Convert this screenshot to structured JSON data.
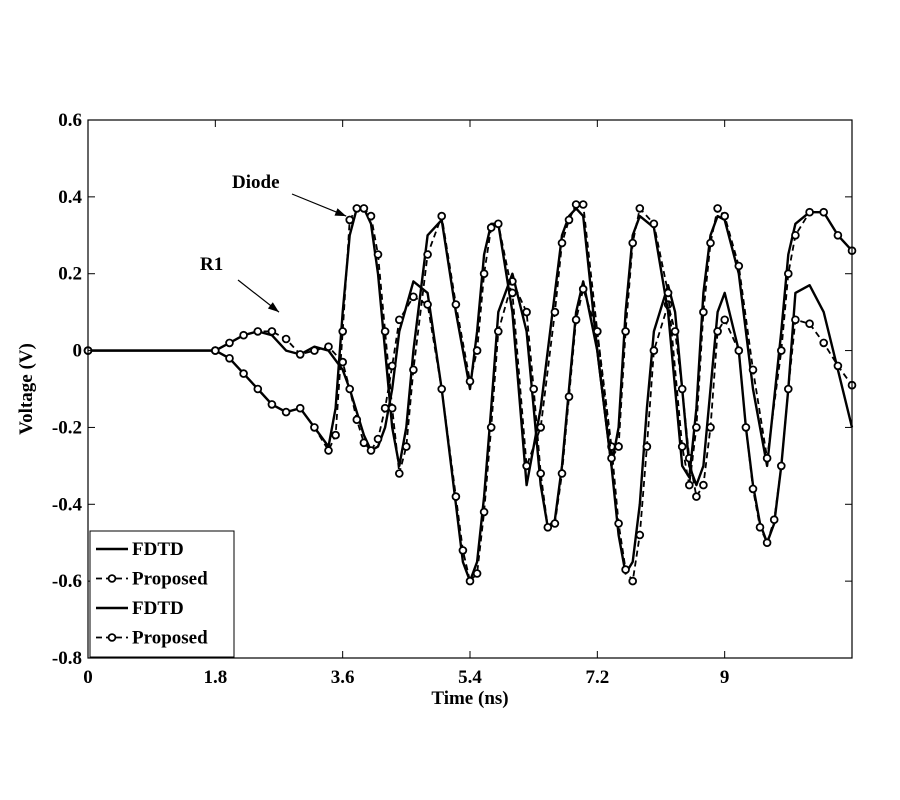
{
  "colors": {
    "line": "#000000",
    "background": "#ffffff"
  },
  "chart_data": {
    "type": "line",
    "title": "",
    "xlabel": "Time (ns)",
    "ylabel": "Voltage (V)",
    "xlim": [
      0,
      10.8
    ],
    "ylim": [
      -0.8,
      0.6
    ],
    "xticks": [
      0,
      1.8,
      3.6,
      5.4,
      7.2,
      9
    ],
    "xtick_labels": [
      "0",
      "1.8",
      "3.6",
      "5.4",
      "7.2",
      "9"
    ],
    "yticks": [
      -0.8,
      -0.6,
      -0.4,
      -0.2,
      0,
      0.2,
      0.4,
      0.6
    ],
    "ytick_labels": [
      "-0.8",
      "-0.6",
      "-0.4",
      "-0.2",
      "0",
      "0.2",
      "0.4",
      "0.6"
    ],
    "grid": false,
    "legend_position": "bottom-left",
    "annotations": [
      {
        "text": "Diode",
        "target": [
          3.65,
          0.35
        ]
      },
      {
        "text": "R1",
        "target": [
          2.7,
          0.1
        ]
      }
    ],
    "series": [
      {
        "name": "FDTD",
        "style": "solid",
        "x": [
          0.0,
          1.8,
          2.0,
          2.2,
          2.4,
          2.6,
          2.8,
          3.0,
          3.2,
          3.4,
          3.6,
          3.7,
          3.8,
          3.9,
          4.0,
          4.1,
          4.2,
          4.3,
          4.4,
          4.6,
          4.8,
          5.0,
          5.2,
          5.3,
          5.4,
          5.5,
          5.6,
          5.7,
          5.8,
          6.0,
          6.2,
          6.3,
          6.4,
          6.5,
          6.6,
          6.7,
          6.8,
          6.9,
          7.0,
          7.2,
          7.4,
          7.5,
          7.6,
          7.7,
          7.8,
          7.9,
          8.0,
          8.2,
          8.3,
          8.4,
          8.5,
          8.6,
          8.7,
          8.8,
          8.9,
          9.0,
          9.2,
          9.3,
          9.4,
          9.5,
          9.6,
          9.7,
          9.8,
          9.9,
          10.0,
          10.2,
          10.4,
          10.6,
          10.8
        ],
        "y": [
          0.0,
          0.0,
          0.02,
          0.04,
          0.05,
          0.04,
          0.0,
          -0.01,
          0.01,
          0.0,
          -0.05,
          -0.1,
          -0.16,
          -0.22,
          -0.26,
          -0.25,
          -0.2,
          -0.1,
          0.05,
          0.18,
          0.15,
          -0.1,
          -0.4,
          -0.55,
          -0.6,
          -0.55,
          -0.38,
          -0.15,
          0.1,
          0.2,
          0.05,
          -0.15,
          -0.35,
          -0.46,
          -0.44,
          -0.3,
          -0.1,
          0.1,
          0.18,
          0.0,
          -0.3,
          -0.48,
          -0.58,
          -0.55,
          -0.4,
          -0.15,
          0.05,
          0.17,
          0.1,
          -0.1,
          -0.3,
          -0.35,
          -0.3,
          -0.1,
          0.1,
          0.15,
          0.0,
          -0.2,
          -0.35,
          -0.45,
          -0.5,
          -0.45,
          -0.3,
          -0.1,
          0.15,
          0.17,
          0.1,
          -0.05,
          -0.2
        ]
      },
      {
        "name": "Proposed",
        "style": "dashed-circles",
        "x": [
          0.0,
          1.8,
          2.0,
          2.2,
          2.4,
          2.6,
          2.8,
          3.0,
          3.2,
          3.4,
          3.6,
          3.7,
          3.8,
          3.9,
          4.0,
          4.1,
          4.2,
          4.3,
          4.4,
          4.6,
          4.8,
          5.0,
          5.2,
          5.3,
          5.4,
          5.5,
          5.6,
          5.7,
          5.8,
          6.0,
          6.2,
          6.3,
          6.4,
          6.5,
          6.6,
          6.7,
          6.8,
          6.9,
          7.0,
          7.2,
          7.4,
          7.5,
          7.6,
          7.7,
          7.8,
          7.9,
          8.0,
          8.2,
          8.3,
          8.4,
          8.5,
          8.6,
          8.7,
          8.8,
          8.9,
          9.0,
          9.2,
          9.3,
          9.4,
          9.5,
          9.6,
          9.7,
          9.8,
          9.9,
          10.0,
          10.2,
          10.4,
          10.6,
          10.8
        ],
        "y": [
          0.0,
          0.0,
          0.02,
          0.04,
          0.05,
          0.05,
          0.03,
          -0.01,
          0.0,
          0.01,
          -0.03,
          -0.1,
          -0.18,
          -0.24,
          -0.26,
          -0.23,
          -0.15,
          -0.04,
          0.08,
          0.14,
          0.12,
          -0.1,
          -0.38,
          -0.52,
          -0.6,
          -0.58,
          -0.42,
          -0.2,
          0.05,
          0.18,
          0.1,
          -0.1,
          -0.32,
          -0.46,
          -0.45,
          -0.32,
          -0.12,
          0.08,
          0.16,
          0.05,
          -0.25,
          -0.45,
          -0.57,
          -0.6,
          -0.48,
          -0.25,
          0.0,
          0.12,
          0.05,
          -0.1,
          -0.28,
          -0.38,
          -0.35,
          -0.2,
          0.05,
          0.08,
          0.0,
          -0.2,
          -0.36,
          -0.46,
          -0.5,
          -0.44,
          -0.3,
          -0.1,
          0.08,
          0.07,
          0.02,
          -0.04,
          -0.09
        ]
      },
      {
        "name": "FDTD",
        "style": "solid",
        "x": [
          0.0,
          1.8,
          2.0,
          2.2,
          2.4,
          2.6,
          2.8,
          3.0,
          3.2,
          3.4,
          3.5,
          3.6,
          3.7,
          3.8,
          3.9,
          4.0,
          4.1,
          4.2,
          4.3,
          4.4,
          4.5,
          4.6,
          4.8,
          5.0,
          5.2,
          5.4,
          5.5,
          5.6,
          5.7,
          5.8,
          6.0,
          6.2,
          6.4,
          6.6,
          6.7,
          6.8,
          6.9,
          7.0,
          7.2,
          7.4,
          7.5,
          7.6,
          7.7,
          7.8,
          8.0,
          8.2,
          8.4,
          8.5,
          8.6,
          8.7,
          8.8,
          8.9,
          9.0,
          9.2,
          9.4,
          9.6,
          9.8,
          9.9,
          10.0,
          10.2,
          10.4,
          10.6,
          10.8
        ],
        "y": [
          0.0,
          0.0,
          -0.02,
          -0.06,
          -0.1,
          -0.14,
          -0.16,
          -0.15,
          -0.2,
          -0.25,
          -0.15,
          0.1,
          0.3,
          0.37,
          0.37,
          0.33,
          0.2,
          0.0,
          -0.2,
          -0.3,
          -0.2,
          0.0,
          0.3,
          0.34,
          0.1,
          -0.1,
          0.05,
          0.25,
          0.33,
          0.33,
          0.1,
          -0.35,
          -0.15,
          0.15,
          0.3,
          0.35,
          0.37,
          0.35,
          0.0,
          -0.3,
          -0.2,
          0.1,
          0.3,
          0.35,
          0.32,
          0.1,
          -0.3,
          -0.33,
          -0.15,
          0.15,
          0.3,
          0.35,
          0.34,
          0.2,
          -0.1,
          -0.3,
          0.05,
          0.25,
          0.33,
          0.36,
          0.36,
          0.3,
          0.26
        ]
      },
      {
        "name": "Proposed",
        "style": "dashed-circles",
        "x": [
          0.0,
          1.8,
          2.0,
          2.2,
          2.4,
          2.6,
          2.8,
          3.0,
          3.2,
          3.4,
          3.5,
          3.6,
          3.7,
          3.8,
          3.9,
          4.0,
          4.1,
          4.2,
          4.3,
          4.4,
          4.5,
          4.6,
          4.8,
          5.0,
          5.2,
          5.4,
          5.5,
          5.6,
          5.7,
          5.8,
          6.0,
          6.2,
          6.4,
          6.6,
          6.7,
          6.8,
          6.9,
          7.0,
          7.2,
          7.4,
          7.5,
          7.6,
          7.7,
          7.8,
          8.0,
          8.2,
          8.4,
          8.5,
          8.6,
          8.7,
          8.8,
          8.9,
          9.0,
          9.2,
          9.4,
          9.6,
          9.8,
          9.9,
          10.0,
          10.2,
          10.4,
          10.6,
          10.8
        ],
        "y": [
          0.0,
          0.0,
          -0.02,
          -0.06,
          -0.1,
          -0.14,
          -0.16,
          -0.15,
          -0.2,
          -0.26,
          -0.22,
          0.05,
          0.34,
          0.37,
          0.37,
          0.35,
          0.25,
          0.05,
          -0.15,
          -0.32,
          -0.25,
          -0.05,
          0.25,
          0.35,
          0.12,
          -0.08,
          0.0,
          0.2,
          0.32,
          0.33,
          0.15,
          -0.3,
          -0.2,
          0.1,
          0.28,
          0.34,
          0.38,
          0.38,
          0.05,
          -0.28,
          -0.25,
          0.05,
          0.28,
          0.37,
          0.33,
          0.15,
          -0.25,
          -0.35,
          -0.2,
          0.1,
          0.28,
          0.37,
          0.35,
          0.22,
          -0.05,
          -0.28,
          0.0,
          0.2,
          0.3,
          0.36,
          0.36,
          0.3,
          0.26
        ]
      }
    ]
  }
}
